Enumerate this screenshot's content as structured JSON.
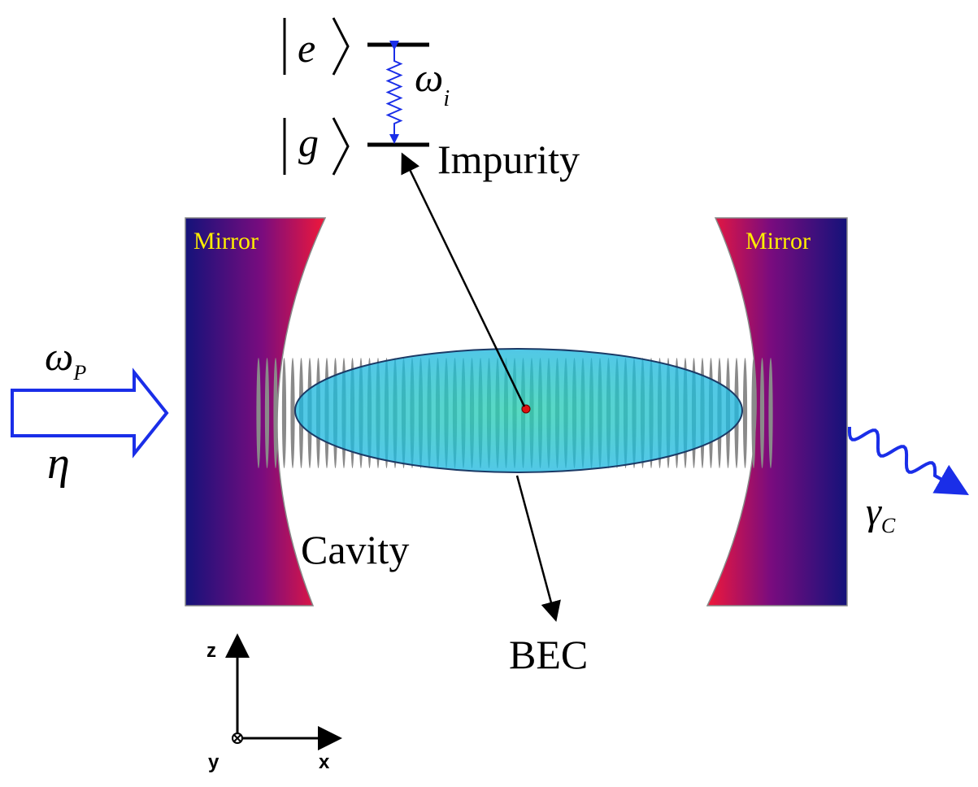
{
  "impurity": {
    "excited_state": "e",
    "ground_state": "g",
    "frequency": {
      "symbol": "ω",
      "subscript": "i"
    },
    "label": "Impurity"
  },
  "mirrors": [
    "Mirror",
    "Mirror"
  ],
  "pump": {
    "frequency": {
      "symbol": "ω",
      "subscript": "P"
    },
    "amplitude": "η"
  },
  "cavity": {
    "label": "Cavity",
    "decay": {
      "symbol": "γ",
      "subscript": "C"
    }
  },
  "bec": {
    "label": "BEC"
  },
  "axes": {
    "z": "z",
    "x": "x",
    "y": "y"
  }
}
